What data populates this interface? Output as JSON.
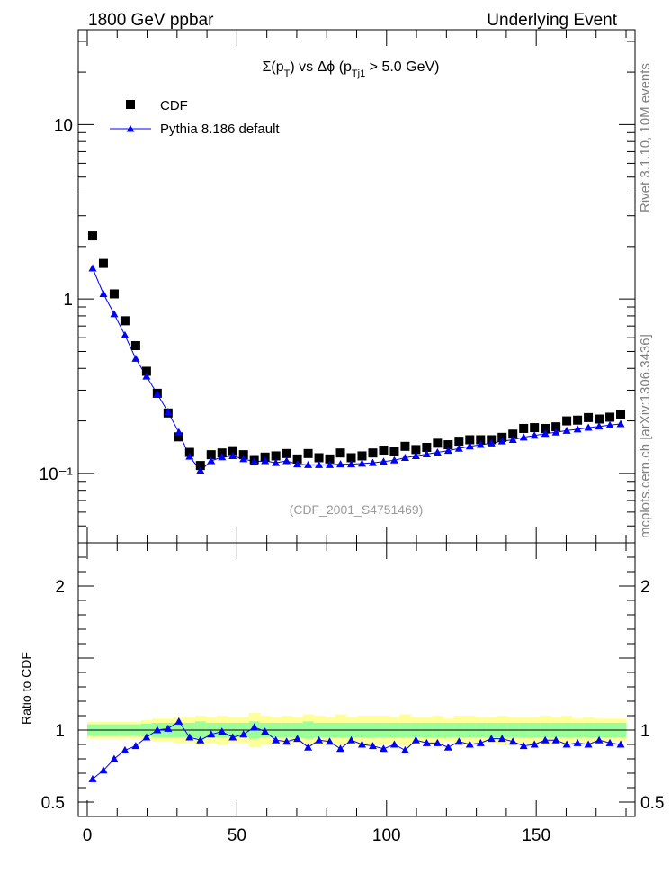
{
  "header": {
    "left": "1800 GeV ppbar",
    "right": "Underlying Event"
  },
  "side_labels": {
    "rivet": "Rivet 3.1.10, 10M events",
    "mcplots": "mcplots.cern.ch [arXiv:1306.3436]"
  },
  "annotation": "(CDF_2001_S4751469)",
  "legend": {
    "cdf": "CDF",
    "pythia": "Pythia 8.186 default"
  },
  "colors": {
    "cdf": "#000000",
    "pythia": "#0000ff",
    "band_inner": "#99ff99",
    "band_outer": "#ffff99"
  },
  "chart_data": [
    {
      "type": "scatter",
      "title_parts": [
        "Σ(p",
        "T",
        ") vs Δϕ (p",
        "Tj1",
        " > 5.0 GeV)"
      ],
      "xlabel": "",
      "ylabel": "",
      "xlim": [
        -3,
        183
      ],
      "ylim": [
        0.04,
        35
      ],
      "log_y": true,
      "y_tick_labels": [
        "10⁻¹",
        "1",
        "10"
      ],
      "x": [
        1.8,
        5.4,
        9,
        12.6,
        16.2,
        19.8,
        23.4,
        27,
        30.6,
        34.2,
        37.8,
        41.4,
        45,
        48.6,
        52.2,
        55.8,
        59.4,
        63,
        66.6,
        70.2,
        73.8,
        77.4,
        81,
        84.6,
        88.2,
        91.8,
        95.4,
        99,
        102.6,
        106.2,
        109.8,
        113.4,
        117,
        120.6,
        124.2,
        127.8,
        131.4,
        135,
        138.6,
        142.2,
        145.8,
        149.4,
        153,
        156.6,
        160.2,
        163.8,
        167.4,
        171,
        174.6,
        178.2
      ],
      "series": [
        {
          "name": "CDF",
          "values": [
            2.3,
            1.6,
            1.07,
            0.75,
            0.54,
            0.385,
            0.288,
            0.222,
            0.162,
            0.132,
            0.111,
            0.128,
            0.131,
            0.135,
            0.128,
            0.12,
            0.124,
            0.126,
            0.13,
            0.121,
            0.13,
            0.123,
            0.121,
            0.131,
            0.123,
            0.126,
            0.131,
            0.136,
            0.134,
            0.143,
            0.137,
            0.141,
            0.149,
            0.146,
            0.153,
            0.156,
            0.156,
            0.156,
            0.161,
            0.168,
            0.181,
            0.183,
            0.181,
            0.185,
            0.2,
            0.202,
            0.209,
            0.205,
            0.21,
            0.217
          ]
        },
        {
          "name": "Pythia 8.186 default",
          "values": [
            1.5,
            1.07,
            0.82,
            0.62,
            0.455,
            0.36,
            0.285,
            0.225,
            0.172,
            0.125,
            0.104,
            0.118,
            0.124,
            0.126,
            0.121,
            0.117,
            0.118,
            0.115,
            0.118,
            0.113,
            0.112,
            0.112,
            0.112,
            0.113,
            0.113,
            0.114,
            0.115,
            0.117,
            0.119,
            0.123,
            0.126,
            0.129,
            0.132,
            0.135,
            0.139,
            0.143,
            0.146,
            0.149,
            0.153,
            0.156,
            0.161,
            0.165,
            0.169,
            0.172,
            0.176,
            0.179,
            0.183,
            0.186,
            0.189,
            0.192
          ]
        }
      ]
    },
    {
      "type": "line",
      "ylabel": "Ratio to CDF",
      "xlim": [
        -3,
        183
      ],
      "ylim": [
        0.4,
        2.3
      ],
      "x_tick_labels": [
        "0",
        "50",
        "100",
        "150"
      ],
      "y_tick_labels": [
        "0.5",
        "1",
        "2"
      ],
      "x": [
        1.8,
        5.4,
        9,
        12.6,
        16.2,
        19.8,
        23.4,
        27,
        30.6,
        34.2,
        37.8,
        41.4,
        45,
        48.6,
        52.2,
        55.8,
        59.4,
        63,
        66.6,
        70.2,
        73.8,
        77.4,
        81,
        84.6,
        88.2,
        91.8,
        95.4,
        99,
        102.6,
        106.2,
        109.8,
        113.4,
        117,
        120.6,
        124.2,
        127.8,
        131.4,
        135,
        138.6,
        142.2,
        145.8,
        149.4,
        153,
        156.6,
        160.2,
        163.8,
        167.4,
        171,
        174.6,
        178.2
      ],
      "series": [
        {
          "name": "Pythia 8.186 default",
          "values": [
            0.66,
            0.72,
            0.8,
            0.86,
            0.89,
            0.95,
            1.0,
            1.01,
            1.06,
            0.95,
            0.93,
            0.97,
            0.99,
            0.95,
            0.97,
            1.02,
            0.99,
            0.93,
            0.92,
            0.94,
            0.88,
            0.93,
            0.92,
            0.87,
            0.93,
            0.9,
            0.89,
            0.87,
            0.9,
            0.86,
            0.93,
            0.91,
            0.91,
            0.88,
            0.92,
            0.9,
            0.91,
            0.94,
            0.94,
            0.92,
            0.89,
            0.9,
            0.93,
            0.93,
            0.9,
            0.91,
            0.9,
            0.93,
            0.91,
            0.9
          ]
        }
      ],
      "band_inner_halfwidth": [
        0.04,
        0.04,
        0.04,
        0.04,
        0.04,
        0.045,
        0.05,
        0.05,
        0.05,
        0.05,
        0.06,
        0.05,
        0.05,
        0.05,
        0.05,
        0.06,
        0.05,
        0.05,
        0.05,
        0.05,
        0.06,
        0.05,
        0.05,
        0.05,
        0.05,
        0.05,
        0.05,
        0.05,
        0.05,
        0.05,
        0.05,
        0.05,
        0.05,
        0.05,
        0.05,
        0.05,
        0.05,
        0.05,
        0.05,
        0.05,
        0.05,
        0.05,
        0.05,
        0.05,
        0.05,
        0.05,
        0.05,
        0.05,
        0.05,
        0.05
      ],
      "band_outer_halfwidth": [
        0.06,
        0.06,
        0.06,
        0.06,
        0.06,
        0.07,
        0.08,
        0.08,
        0.09,
        0.09,
        0.1,
        0.09,
        0.1,
        0.09,
        0.09,
        0.12,
        0.1,
        0.09,
        0.1,
        0.09,
        0.11,
        0.1,
        0.09,
        0.11,
        0.09,
        0.1,
        0.1,
        0.1,
        0.09,
        0.11,
        0.09,
        0.09,
        0.1,
        0.08,
        0.1,
        0.1,
        0.09,
        0.09,
        0.1,
        0.09,
        0.09,
        0.09,
        0.1,
        0.09,
        0.1,
        0.08,
        0.09,
        0.08,
        0.08,
        0.08
      ]
    }
  ]
}
